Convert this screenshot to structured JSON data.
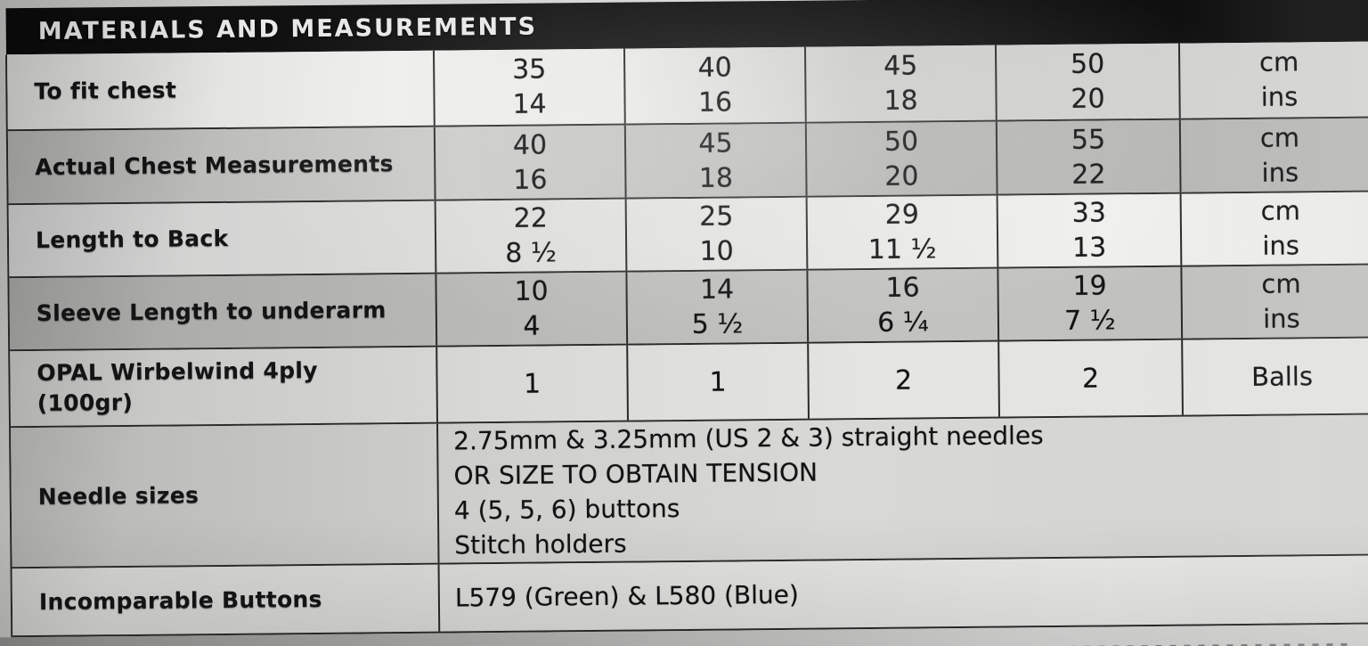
{
  "header": {
    "title": "MATERIALS AND MEASUREMENTS"
  },
  "table": {
    "rows": [
      {
        "label": "To fit chest",
        "c1": [
          "35",
          "14"
        ],
        "c2": [
          "40",
          "16"
        ],
        "c3": [
          "45",
          "18"
        ],
        "c4": [
          "50",
          "20"
        ],
        "unit": [
          "cm",
          "ins"
        ]
      },
      {
        "label": "Actual Chest Measurements",
        "c1": [
          "40",
          "16"
        ],
        "c2": [
          "45",
          "18"
        ],
        "c3": [
          "50",
          "20"
        ],
        "c4": [
          "55",
          "22"
        ],
        "unit": [
          "cm",
          "ins"
        ]
      },
      {
        "label": "Length to Back",
        "c1": [
          "22",
          "8 ½"
        ],
        "c2": [
          "25",
          "10"
        ],
        "c3": [
          "29",
          "11 ½"
        ],
        "c4": [
          "33",
          "13"
        ],
        "unit": [
          "cm",
          "ins"
        ]
      },
      {
        "label": "Sleeve Length to underarm",
        "c1": [
          "10",
          "4"
        ],
        "c2": [
          "14",
          "5 ½"
        ],
        "c3": [
          "16",
          "6 ¼"
        ],
        "c4": [
          "19",
          "7 ½"
        ],
        "unit": [
          "cm",
          "ins"
        ]
      },
      {
        "label": "OPAL Wirbelwind 4ply",
        "label2": "(100gr)",
        "c1": [
          "1"
        ],
        "c2": [
          "1"
        ],
        "c3": [
          "2"
        ],
        "c4": [
          "2"
        ],
        "unit": [
          "Balls"
        ]
      }
    ],
    "needle_row": {
      "label": "Needle sizes",
      "lines": [
        "2.75mm & 3.25mm (US 2 & 3) straight needles",
        "OR SIZE TO OBTAIN TENSION",
        "4 (5, 5, 6) buttons",
        "Stitch holders"
      ]
    },
    "buttons_row": {
      "label": "Incomparable Buttons",
      "value": "L579 (Green) & L580 (Blue)"
    }
  },
  "colors": {
    "header_bg": "#111111",
    "header_text": "#e8e8e8",
    "grid_line": "#2a2a2a",
    "text": "#141414",
    "light_row": "#e5e5e3",
    "dark_row": "#b5b5b3"
  }
}
